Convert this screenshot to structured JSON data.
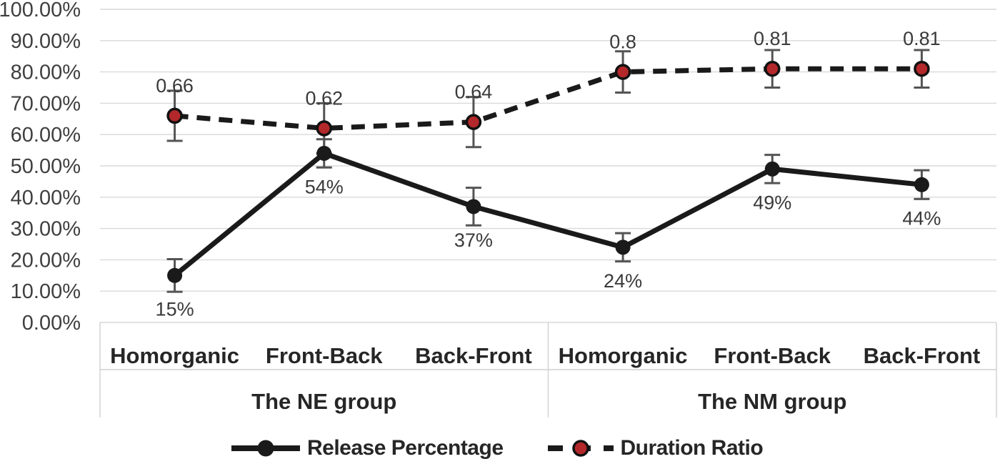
{
  "chart_data": {
    "type": "line",
    "title": "",
    "y_axis": {
      "tick_labels": [
        "0.00%",
        "10.00%",
        "20.00%",
        "30.00%",
        "40.00%",
        "50.00%",
        "60.00%",
        "70.00%",
        "80.00%",
        "90.00%",
        "100.00%"
      ],
      "min_percent": 0,
      "max_percent": 100,
      "grid": true
    },
    "x_axis": {
      "categories": [
        "Homorganic",
        "Front-Back",
        "Back-Front",
        "Homorganic",
        "Front-Back",
        "Back-Front"
      ],
      "groups": [
        {
          "label": "The NE group",
          "span": [
            0,
            2
          ]
        },
        {
          "label": "The NM group",
          "span": [
            3,
            5
          ]
        }
      ]
    },
    "series": [
      {
        "name": "Release Percentage",
        "line_style": "solid",
        "color": "#1a1a1a",
        "marker": {
          "shape": "circle",
          "fill": "#1a1a1a",
          "stroke": ""
        },
        "values_percent": [
          15,
          54,
          37,
          24,
          49,
          44
        ],
        "data_labels": [
          "15%",
          "54%",
          "37%",
          "24%",
          "49%",
          "44%"
        ],
        "label_position": "below",
        "error_bars_percent": [
          5.2,
          4.5,
          6,
          4.5,
          4.5,
          4.6
        ]
      },
      {
        "name": "Duration Ratio",
        "line_style": "dashed",
        "color": "#1a1a1a",
        "marker": {
          "shape": "circle",
          "fill": "#b3282a",
          "stroke": "#111111"
        },
        "values_percent": [
          66,
          62,
          64,
          80,
          81,
          81
        ],
        "data_labels": [
          "0.66",
          "0.62",
          "0.64",
          "0.8",
          "0.81",
          "0.81"
        ],
        "label_position": "above",
        "error_bars_percent": [
          8,
          8,
          8,
          6.6,
          6,
          6
        ]
      }
    ],
    "legend": {
      "position": "bottom",
      "entries": [
        "Release Percentage",
        "Duration Ratio"
      ]
    }
  },
  "colors": {
    "background": "#ffffff",
    "gridline": "#d9d9d9",
    "axis_line": "#d0d0d0",
    "error_bar": "#545454",
    "tick_label": "#3f3f3f",
    "data_label": "#3a3a3a",
    "category_label": "#262626"
  }
}
